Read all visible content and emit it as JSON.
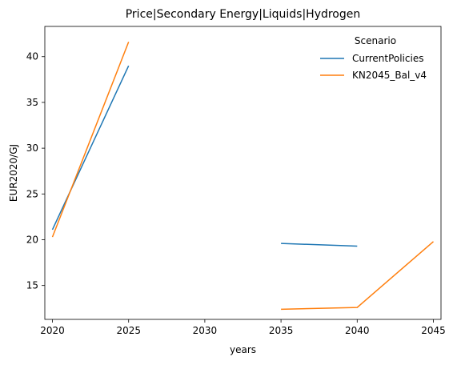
{
  "chart_data": {
    "type": "line",
    "title": "Price|Secondary Energy|Liquids|Hydrogen",
    "xlabel": "years",
    "ylabel": "EUR2020/GJ",
    "xlim": [
      2019.5,
      2045.5
    ],
    "ylim": [
      11.3,
      43.3
    ],
    "xticks": [
      2020,
      2025,
      2030,
      2035,
      2040,
      2045
    ],
    "yticks": [
      15,
      20,
      25,
      30,
      35,
      40
    ],
    "grid": false,
    "legend": {
      "title": "Scenario",
      "position": "top-right"
    },
    "series": [
      {
        "name": "CurrentPolicies",
        "color": "#1f77b4",
        "segments": [
          {
            "x": [
              2020,
              2025
            ],
            "y": [
              21.1,
              39.0
            ]
          },
          {
            "x": [
              2035,
              2040
            ],
            "y": [
              19.6,
              19.3
            ]
          }
        ]
      },
      {
        "name": "KN2045_Bal_v4",
        "color": "#ff7f0e",
        "segments": [
          {
            "x": [
              2020,
              2025
            ],
            "y": [
              20.3,
              41.6
            ]
          },
          {
            "x": [
              2035,
              2040,
              2045
            ],
            "y": [
              12.4,
              12.6,
              19.8
            ]
          }
        ]
      }
    ]
  }
}
